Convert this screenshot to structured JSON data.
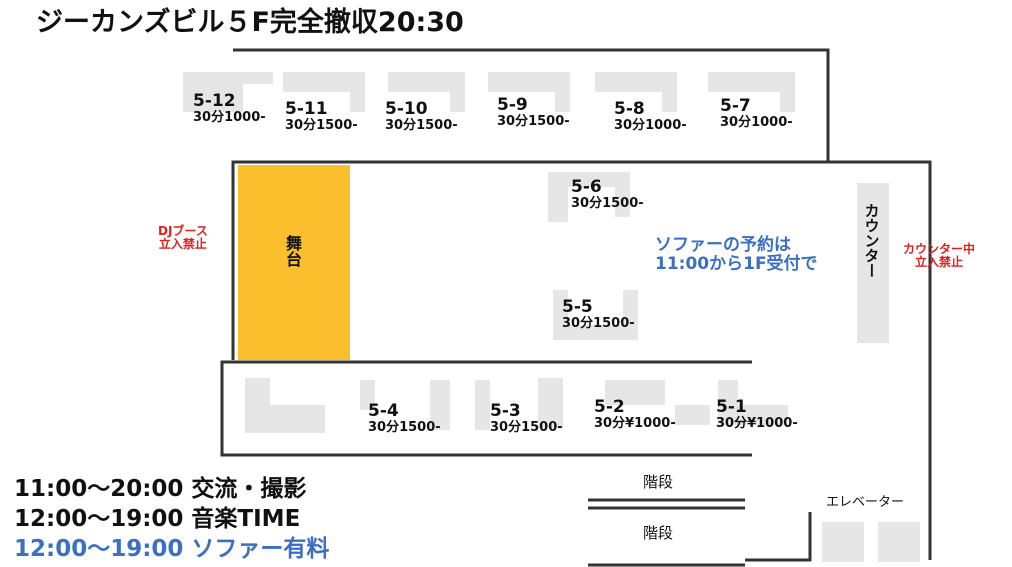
{
  "title": "ジーカンズビル５F完全撤収20:30",
  "seats": [
    {
      "id": "5-12",
      "price": "30分1000-"
    },
    {
      "id": "5-11",
      "price": "30分1500-"
    },
    {
      "id": "5-10",
      "price": "30分1500-"
    },
    {
      "id": "5-9",
      "price": "30分1500-"
    },
    {
      "id": "5-8",
      "price": "30分1000-"
    },
    {
      "id": "5-7",
      "price": "30分1000-"
    },
    {
      "id": "5-6",
      "price": "30分1500-"
    },
    {
      "id": "5-5",
      "price": "30分1500-"
    },
    {
      "id": "5-4",
      "price": "30分1500-"
    },
    {
      "id": "5-3",
      "price": "30分1500-"
    },
    {
      "id": "5-2",
      "price": "30分¥1000-"
    },
    {
      "id": "5-1",
      "price": "30分¥1000-"
    }
  ],
  "stage": "舞台",
  "dj_note": [
    "DJブース",
    "立入禁止"
  ],
  "sofa_notice": [
    "ソファーの予約は",
    "11:00から1F受付で"
  ],
  "counter": "カウンター",
  "counter_note": [
    "カウンター中",
    "立入禁止"
  ],
  "stairs": [
    "階段",
    "階段"
  ],
  "elevator": "エレベーター",
  "schedule": [
    "11:00〜20:00 交流・撮影",
    "12:00〜19:00 音楽TIME",
    "12:00〜19:00 ソファー有料"
  ]
}
